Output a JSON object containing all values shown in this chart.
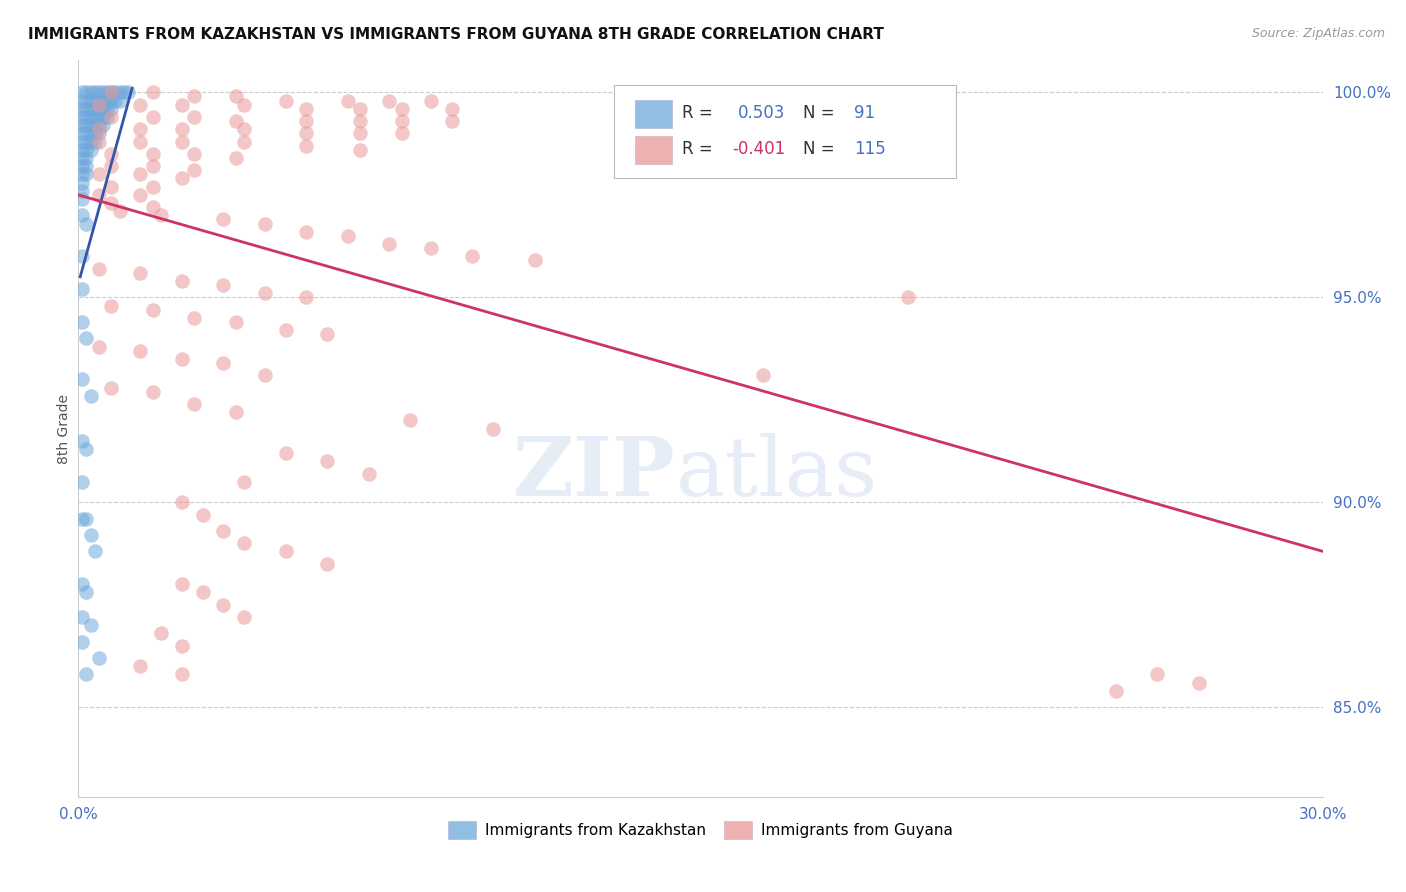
{
  "title": "IMMIGRANTS FROM KAZAKHSTAN VS IMMIGRANTS FROM GUYANA 8TH GRADE CORRELATION CHART",
  "source": "Source: ZipAtlas.com",
  "ylabel": "8th Grade",
  "xlim": [
    0.0,
    0.3
  ],
  "ylim": [
    0.828,
    1.008
  ],
  "yticks": [
    0.85,
    0.9,
    0.95,
    1.0
  ],
  "ytick_labels": [
    "85.0%",
    "90.0%",
    "95.0%",
    "100.0%"
  ],
  "xticks": [
    0.0,
    0.05,
    0.1,
    0.15,
    0.2,
    0.25,
    0.3
  ],
  "xtick_labels": [
    "0.0%",
    "",
    "",
    "",
    "",
    "",
    "30.0%"
  ],
  "blue_R": 0.503,
  "blue_N": 91,
  "pink_R": -0.401,
  "pink_N": 115,
  "blue_color": "#6fa8dc",
  "pink_color": "#ea9999",
  "blue_line_color": "#3355aa",
  "pink_line_color": "#cc3366",
  "legend_label_blue": "Immigrants from Kazakhstan",
  "legend_label_pink": "Immigrants from Guyana",
  "axis_label_color": "#4472c4",
  "blue_line": [
    [
      0.0005,
      0.955
    ],
    [
      0.013,
      1.001
    ]
  ],
  "pink_line": [
    [
      0.0,
      0.975
    ],
    [
      0.3,
      0.888
    ]
  ],
  "blue_scatter": [
    [
      0.001,
      1.0
    ],
    [
      0.002,
      1.0
    ],
    [
      0.003,
      1.0
    ],
    [
      0.004,
      1.0
    ],
    [
      0.005,
      1.0
    ],
    [
      0.006,
      1.0
    ],
    [
      0.007,
      1.0
    ],
    [
      0.008,
      1.0
    ],
    [
      0.009,
      1.0
    ],
    [
      0.01,
      1.0
    ],
    [
      0.011,
      1.0
    ],
    [
      0.012,
      1.0
    ],
    [
      0.001,
      0.998
    ],
    [
      0.002,
      0.998
    ],
    [
      0.003,
      0.998
    ],
    [
      0.004,
      0.998
    ],
    [
      0.005,
      0.998
    ],
    [
      0.006,
      0.998
    ],
    [
      0.007,
      0.998
    ],
    [
      0.008,
      0.998
    ],
    [
      0.009,
      0.998
    ],
    [
      0.01,
      0.998
    ],
    [
      0.001,
      0.996
    ],
    [
      0.002,
      0.996
    ],
    [
      0.003,
      0.996
    ],
    [
      0.004,
      0.996
    ],
    [
      0.005,
      0.996
    ],
    [
      0.006,
      0.996
    ],
    [
      0.007,
      0.996
    ],
    [
      0.008,
      0.996
    ],
    [
      0.001,
      0.994
    ],
    [
      0.002,
      0.994
    ],
    [
      0.003,
      0.994
    ],
    [
      0.004,
      0.994
    ],
    [
      0.005,
      0.994
    ],
    [
      0.006,
      0.994
    ],
    [
      0.007,
      0.994
    ],
    [
      0.001,
      0.992
    ],
    [
      0.002,
      0.992
    ],
    [
      0.003,
      0.992
    ],
    [
      0.004,
      0.992
    ],
    [
      0.005,
      0.992
    ],
    [
      0.006,
      0.992
    ],
    [
      0.001,
      0.99
    ],
    [
      0.002,
      0.99
    ],
    [
      0.003,
      0.99
    ],
    [
      0.004,
      0.99
    ],
    [
      0.005,
      0.99
    ],
    [
      0.001,
      0.988
    ],
    [
      0.002,
      0.988
    ],
    [
      0.003,
      0.988
    ],
    [
      0.004,
      0.988
    ],
    [
      0.001,
      0.986
    ],
    [
      0.002,
      0.986
    ],
    [
      0.003,
      0.986
    ],
    [
      0.001,
      0.984
    ],
    [
      0.002,
      0.984
    ],
    [
      0.001,
      0.982
    ],
    [
      0.002,
      0.982
    ],
    [
      0.001,
      0.98
    ],
    [
      0.002,
      0.98
    ],
    [
      0.001,
      0.978
    ],
    [
      0.001,
      0.976
    ],
    [
      0.001,
      0.974
    ],
    [
      0.001,
      0.97
    ],
    [
      0.002,
      0.968
    ],
    [
      0.001,
      0.96
    ],
    [
      0.001,
      0.952
    ],
    [
      0.001,
      0.944
    ],
    [
      0.002,
      0.94
    ],
    [
      0.001,
      0.93
    ],
    [
      0.003,
      0.926
    ],
    [
      0.001,
      0.915
    ],
    [
      0.002,
      0.913
    ],
    [
      0.001,
      0.905
    ],
    [
      0.001,
      0.896
    ],
    [
      0.002,
      0.896
    ],
    [
      0.003,
      0.892
    ],
    [
      0.004,
      0.888
    ],
    [
      0.001,
      0.88
    ],
    [
      0.002,
      0.878
    ],
    [
      0.001,
      0.872
    ],
    [
      0.003,
      0.87
    ],
    [
      0.001,
      0.866
    ],
    [
      0.005,
      0.862
    ],
    [
      0.002,
      0.858
    ]
  ],
  "pink_scatter": [
    [
      0.008,
      1.0
    ],
    [
      0.018,
      1.0
    ],
    [
      0.028,
      0.999
    ],
    [
      0.038,
      0.999
    ],
    [
      0.05,
      0.998
    ],
    [
      0.065,
      0.998
    ],
    [
      0.075,
      0.998
    ],
    [
      0.085,
      0.998
    ],
    [
      0.005,
      0.997
    ],
    [
      0.015,
      0.997
    ],
    [
      0.025,
      0.997
    ],
    [
      0.04,
      0.997
    ],
    [
      0.055,
      0.996
    ],
    [
      0.068,
      0.996
    ],
    [
      0.078,
      0.996
    ],
    [
      0.09,
      0.996
    ],
    [
      0.008,
      0.994
    ],
    [
      0.018,
      0.994
    ],
    [
      0.028,
      0.994
    ],
    [
      0.038,
      0.993
    ],
    [
      0.055,
      0.993
    ],
    [
      0.068,
      0.993
    ],
    [
      0.078,
      0.993
    ],
    [
      0.09,
      0.993
    ],
    [
      0.005,
      0.991
    ],
    [
      0.015,
      0.991
    ],
    [
      0.025,
      0.991
    ],
    [
      0.04,
      0.991
    ],
    [
      0.055,
      0.99
    ],
    [
      0.068,
      0.99
    ],
    [
      0.078,
      0.99
    ],
    [
      0.005,
      0.988
    ],
    [
      0.015,
      0.988
    ],
    [
      0.025,
      0.988
    ],
    [
      0.04,
      0.988
    ],
    [
      0.055,
      0.987
    ],
    [
      0.068,
      0.986
    ],
    [
      0.008,
      0.985
    ],
    [
      0.018,
      0.985
    ],
    [
      0.028,
      0.985
    ],
    [
      0.038,
      0.984
    ],
    [
      0.008,
      0.982
    ],
    [
      0.018,
      0.982
    ],
    [
      0.028,
      0.981
    ],
    [
      0.005,
      0.98
    ],
    [
      0.015,
      0.98
    ],
    [
      0.025,
      0.979
    ],
    [
      0.008,
      0.977
    ],
    [
      0.018,
      0.977
    ],
    [
      0.005,
      0.975
    ],
    [
      0.015,
      0.975
    ],
    [
      0.008,
      0.973
    ],
    [
      0.018,
      0.972
    ],
    [
      0.01,
      0.971
    ],
    [
      0.02,
      0.97
    ],
    [
      0.035,
      0.969
    ],
    [
      0.045,
      0.968
    ],
    [
      0.055,
      0.966
    ],
    [
      0.065,
      0.965
    ],
    [
      0.075,
      0.963
    ],
    [
      0.085,
      0.962
    ],
    [
      0.095,
      0.96
    ],
    [
      0.11,
      0.959
    ],
    [
      0.005,
      0.957
    ],
    [
      0.015,
      0.956
    ],
    [
      0.025,
      0.954
    ],
    [
      0.035,
      0.953
    ],
    [
      0.045,
      0.951
    ],
    [
      0.055,
      0.95
    ],
    [
      0.008,
      0.948
    ],
    [
      0.018,
      0.947
    ],
    [
      0.028,
      0.945
    ],
    [
      0.038,
      0.944
    ],
    [
      0.05,
      0.942
    ],
    [
      0.06,
      0.941
    ],
    [
      0.2,
      0.95
    ],
    [
      0.005,
      0.938
    ],
    [
      0.015,
      0.937
    ],
    [
      0.025,
      0.935
    ],
    [
      0.035,
      0.934
    ],
    [
      0.045,
      0.931
    ],
    [
      0.165,
      0.931
    ],
    [
      0.008,
      0.928
    ],
    [
      0.018,
      0.927
    ],
    [
      0.028,
      0.924
    ],
    [
      0.038,
      0.922
    ],
    [
      0.08,
      0.92
    ],
    [
      0.1,
      0.918
    ],
    [
      0.05,
      0.912
    ],
    [
      0.06,
      0.91
    ],
    [
      0.07,
      0.907
    ],
    [
      0.04,
      0.905
    ],
    [
      0.025,
      0.9
    ],
    [
      0.03,
      0.897
    ],
    [
      0.035,
      0.893
    ],
    [
      0.04,
      0.89
    ],
    [
      0.05,
      0.888
    ],
    [
      0.06,
      0.885
    ],
    [
      0.025,
      0.88
    ],
    [
      0.03,
      0.878
    ],
    [
      0.035,
      0.875
    ],
    [
      0.04,
      0.872
    ],
    [
      0.02,
      0.868
    ],
    [
      0.025,
      0.865
    ],
    [
      0.015,
      0.86
    ],
    [
      0.025,
      0.858
    ],
    [
      0.26,
      0.858
    ],
    [
      0.27,
      0.856
    ],
    [
      0.25,
      0.854
    ]
  ]
}
